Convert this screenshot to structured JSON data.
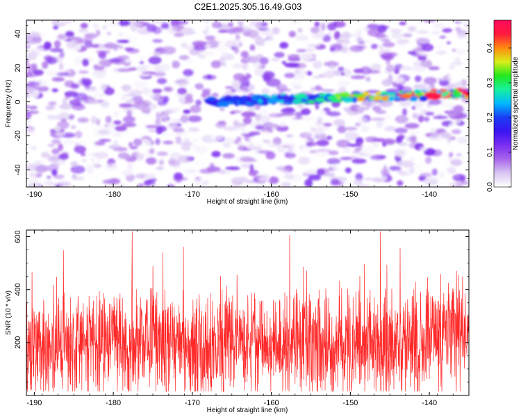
{
  "title": "C2E1.2025.305.16.49.G03",
  "colors": {
    "snr_line": "#ff2a2a",
    "colormap": [
      "#ffffff",
      "#d9c6f3",
      "#a866ea",
      "#7a2ef0",
      "#3b14f2",
      "#1a3cf5",
      "#00b7ff",
      "#17f0a0",
      "#22e81e",
      "#d9ee18",
      "#ff8a10",
      "#ff1a3c",
      "#ff0a5a"
    ]
  },
  "chart_data": [
    {
      "type": "heatmap",
      "name": "spectrogram",
      "xlabel": "Height of straight line (km)",
      "ylabel": "Frequency (Hz)",
      "xlim": [
        -191,
        -135
      ],
      "ylim": [
        -50,
        48
      ],
      "xticks": [
        -190,
        -180,
        -170,
        -160,
        -150,
        -140
      ],
      "xtick_labels": [
        "-190",
        "-180",
        "-170",
        "-160",
        "-150",
        "-140"
      ],
      "yticks": [
        -40,
        -20,
        0,
        20,
        40
      ],
      "ytick_labels": [
        "-40",
        "-20",
        "0",
        "20",
        "40"
      ],
      "colorbar": {
        "label": "Normalized spectral amplitude",
        "range": [
          0.0,
          0.48
        ],
        "ticks": [
          0.0,
          0.1,
          0.2,
          0.3,
          0.4
        ],
        "tick_labels": [
          "0.0",
          "0.1",
          "0.2",
          "0.3",
          "0.4"
        ]
      },
      "ridge": {
        "description": "dominant signal band",
        "x_start": -168,
        "x_end": -135,
        "freq_at_start": 0,
        "freq_at_end": 5,
        "peak_amplitude": 0.45,
        "peak_x": -139.5
      },
      "background_amplitude": [
        0.0,
        0.12
      ]
    },
    {
      "type": "line",
      "name": "snr",
      "xlabel": "Height of straight line (km)",
      "ylabel": "SNR (10 * v/v)",
      "xlim": [
        -191,
        -135
      ],
      "ylim": [
        0,
        625
      ],
      "xticks": [
        -190,
        -180,
        -170,
        -160,
        -150,
        -140
      ],
      "xtick_labels": [
        "-190",
        "-180",
        "-170",
        "-160",
        "-150",
        "-140"
      ],
      "yticks": [
        200,
        400,
        600
      ],
      "ytick_labels": [
        "200",
        "400",
        "600"
      ],
      "series": [
        {
          "name": "SNR",
          "x_range": [
            -191,
            -135
          ],
          "typical_range": [
            80,
            330
          ],
          "mean": 190,
          "max": 620,
          "min": 15
        }
      ]
    }
  ]
}
